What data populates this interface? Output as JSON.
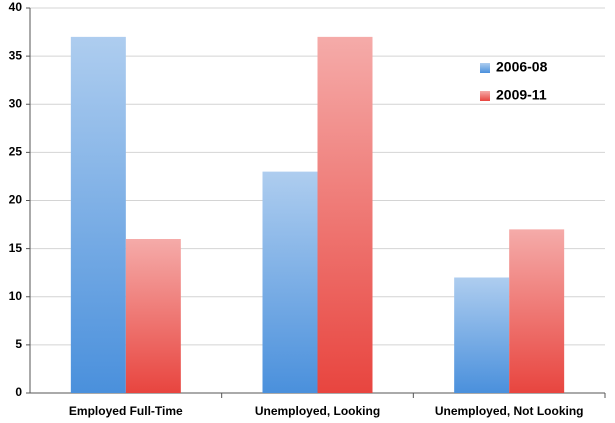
{
  "chart_data": {
    "type": "bar",
    "categories": [
      "Employed Full-Time",
      "Unemployed, Looking",
      "Unemployed, Not Looking"
    ],
    "series": [
      {
        "name": "2006-08",
        "color": "#4a90dc",
        "values": [
          37,
          23,
          12
        ]
      },
      {
        "name": "2009-11",
        "color": "#e8453f",
        "values": [
          16,
          37,
          17
        ]
      }
    ],
    "ylim": [
      0,
      40
    ],
    "yticks": [
      0,
      5,
      10,
      15,
      20,
      25,
      30,
      35,
      40
    ],
    "grid": true,
    "legend": "upper right"
  }
}
